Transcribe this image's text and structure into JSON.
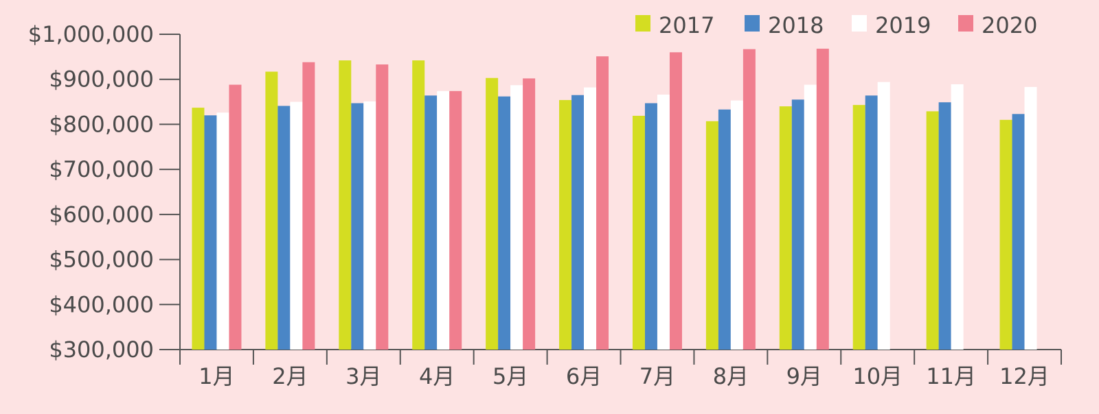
{
  "chart_data": {
    "type": "bar",
    "categories": [
      "1月",
      "2月",
      "3月",
      "4月",
      "5月",
      "6月",
      "7月",
      "8月",
      "9月",
      "10月",
      "11月",
      "12月"
    ],
    "series": [
      {
        "name": "2017",
        "color": "#d4dd22",
        "values": [
          837000,
          917000,
          942000,
          942000,
          903000,
          854000,
          819000,
          807000,
          840000,
          843000,
          829000,
          810000
        ]
      },
      {
        "name": "2018",
        "color": "#4a86c6",
        "values": [
          820000,
          841000,
          847000,
          864000,
          862000,
          865000,
          847000,
          833000,
          855000,
          864000,
          849000,
          823000
        ]
      },
      {
        "name": "2019",
        "color": "#ffffff",
        "values": [
          826000,
          850000,
          851000,
          874000,
          887000,
          882000,
          866000,
          853000,
          888000,
          894000,
          889000,
          883000
        ]
      },
      {
        "name": "2020",
        "color": "#f07e8e",
        "values": [
          888000,
          938000,
          933000,
          874000,
          902000,
          951000,
          960000,
          967000,
          968000,
          null,
          null,
          null
        ]
      }
    ],
    "y_ticks": [
      "$300,000",
      "$400,000",
      "$500,000",
      "$600,000",
      "$700,000",
      "$800,000",
      "$900,000",
      "$1,000,000"
    ],
    "ylim": [
      300000,
      1000000
    ],
    "title": "",
    "xlabel": "",
    "ylabel": "",
    "legend_position": "top-right",
    "grid": false,
    "background": "#fde3e3",
    "axis_color": "#555555"
  }
}
